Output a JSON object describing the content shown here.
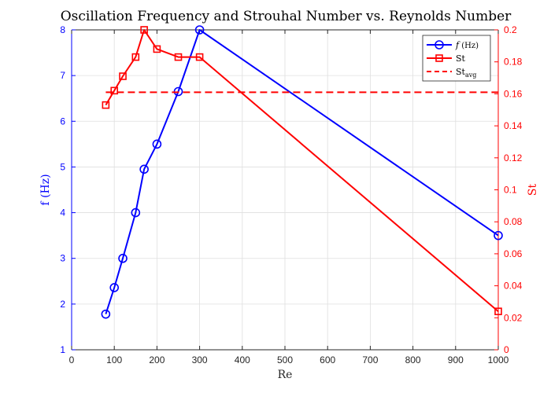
{
  "chart_data": {
    "type": "line",
    "title": "Oscillation Frequency and Strouhal Number vs. Reynolds Number",
    "xlabel": "Re",
    "ylabel_left": "f (Hz)",
    "ylabel_right": "St",
    "xlim": [
      0,
      1000
    ],
    "ylim_left": [
      1,
      8
    ],
    "ylim_right": [
      0,
      0.2
    ],
    "grid": true,
    "legend_position": "top-right",
    "x_ticks": [
      "0",
      "100",
      "200",
      "300",
      "400",
      "500",
      "600",
      "700",
      "800",
      "900",
      "1000"
    ],
    "y_left_ticks": [
      "1",
      "2",
      "3",
      "4",
      "5",
      "6",
      "7",
      "8"
    ],
    "y_right_ticks": [
      "0",
      "0.02",
      "0.04",
      "0.06",
      "0.08",
      "0.1",
      "0.12",
      "0.14",
      "0.16",
      "0.18",
      "0.2"
    ],
    "colors": {
      "left_axis": "#0000ff",
      "right_axis": "#ff0000",
      "grid": "#dfdfdf"
    },
    "series": [
      {
        "name": "f (Hz)",
        "axis": "left",
        "color": "#0000ff",
        "marker": "circle",
        "line_style": "solid",
        "x": [
          80,
          100,
          120,
          150,
          170,
          200,
          250,
          300,
          1000
        ],
        "y": [
          1.78,
          2.36,
          3.0,
          4.0,
          4.95,
          5.5,
          6.65,
          8.0,
          3.5
        ]
      },
      {
        "name": "St",
        "axis": "right",
        "color": "#ff0000",
        "marker": "square",
        "line_style": "solid",
        "x": [
          80,
          100,
          120,
          150,
          170,
          200,
          250,
          300,
          1000
        ],
        "y": [
          0.153,
          0.162,
          0.171,
          0.183,
          0.2,
          0.188,
          0.183,
          0.183,
          0.024
        ]
      },
      {
        "name": "St_avg",
        "axis": "right",
        "color": "#ff0000",
        "marker": "none",
        "line_style": "dashed",
        "x": [
          80,
          1000
        ],
        "y": [
          0.161,
          0.161
        ]
      }
    ],
    "legend": {
      "entries": [
        {
          "prefix": "f",
          "suffix": " (Hz)",
          "subscript": ""
        },
        {
          "prefix": "St",
          "suffix": "",
          "subscript": ""
        },
        {
          "prefix": "St",
          "suffix": "",
          "subscript": "avg"
        }
      ]
    }
  }
}
